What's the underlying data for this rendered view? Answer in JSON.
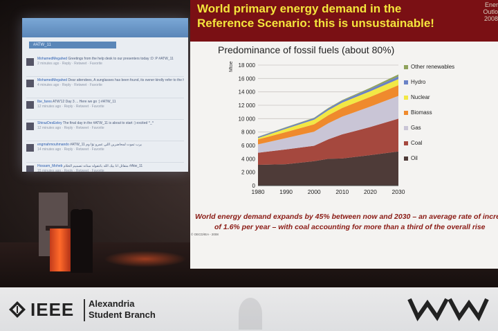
{
  "scene": {
    "description_colors": {
      "stage": "#2b211f",
      "slide_header": "#7a1014",
      "title_text": "#f4e53c",
      "footnote_text": "#8a1a14",
      "podium": "#ff6a2a"
    }
  },
  "twitter_screen": {
    "hashtag": "#ATW_11",
    "tweets": [
      {
        "user": "MohamedMegahed",
        "text": "Greetings from the help desk to our presenters today :D :P #ATW_11",
        "meta": "2 minutes ago · Reply · Retweet · Favorite"
      },
      {
        "user": "MohamedMegahed",
        "text": "Dear attendees, A sunglasses has been found, its owner kindly refer to the help desk #ATW_11",
        "meta": "4 minutes ago · Reply · Retweet · Favorite"
      },
      {
        "user": "Ibe_fares",
        "text": "ATW'12 Day 3 ... Here we go :) #ATW_11",
        "meta": "12 minutes ago · Reply · Retweet · Favorite"
      },
      {
        "user": "ShirazDesEeley",
        "text": "The final day in the #ATW_11 is about to start :) excited ^_^",
        "meta": "12 minutes ago · Reply · Retweet · Favorite"
      },
      {
        "user": "engmahmouhmando",
        "text": "#ATW_11 يرب تموت لمحاضرين اللي عمرو تؤا وم",
        "meta": "14 minutes ago · Reply · Retweet · Favorite"
      },
      {
        "user": "Hossam_Moheb",
        "text": "متفائل انا بيك الله بانتفوله ستانه تصميم الخلام #Atw_11",
        "meta": "15 minutes ago · Reply · Retweet · Favorite"
      }
    ]
  },
  "slide": {
    "title_line1": "World primary energy demand in the",
    "title_line2": "Reference Scenario: this is unsustainable!",
    "corner_line1": "Ener",
    "corner_line2": "Outlo",
    "corner_line3": "2008",
    "subtitle": "Predominance of fossil fuels (about 80%)",
    "footnote_line1": "World energy demand expands by 45% between now and 2030 – an average rate of increa",
    "footnote_line2": "of 1.6% per year – with coal accounting for more than a third of the overall rise",
    "copyright": "© OECD/IEA - 2008"
  },
  "chart_data": {
    "type": "area",
    "title": "Predominance of fossil fuels (about 80%)",
    "ylabel": "Mtoe",
    "xlabel": "",
    "x": [
      1980,
      1990,
      2000,
      2005,
      2010,
      2020,
      2030
    ],
    "ylim": [
      0,
      18000
    ],
    "xlim": [
      1980,
      2030
    ],
    "yticks": [
      "0",
      "2 000",
      "4 000",
      "6 000",
      "8 000",
      "10 000",
      "12 000",
      "14 000",
      "16 000",
      "18 000"
    ],
    "xticks": [
      "1980",
      "1990",
      "2000",
      "2010",
      "2020",
      "2030"
    ],
    "grid": true,
    "legend_position": "right",
    "series": [
      {
        "name": "Oil",
        "color": "#4e3b38",
        "values": [
          3100,
          3200,
          3650,
          4000,
          4050,
          4550,
          5100
        ]
      },
      {
        "name": "Coal",
        "color": "#a5483e",
        "values": [
          1800,
          2200,
          2300,
          2900,
          3600,
          4200,
          4900
        ]
      },
      {
        "name": "Gas",
        "color": "#c9c5d6",
        "values": [
          1250,
          1700,
          2100,
          2400,
          2650,
          3050,
          3400
        ]
      },
      {
        "name": "Biomass",
        "color": "#ef8a2d",
        "values": [
          750,
          900,
          1100,
          1200,
          1300,
          1450,
          1600
        ]
      },
      {
        "name": "Nuclear",
        "color": "#f2e845",
        "values": [
          200,
          500,
          700,
          750,
          800,
          850,
          900
        ]
      },
      {
        "name": "Hydro",
        "color": "#6a82c6",
        "values": [
          150,
          180,
          220,
          250,
          280,
          330,
          400
        ]
      },
      {
        "name": "Other renewables",
        "color": "#8fa25c",
        "values": [
          40,
          60,
          70,
          80,
          100,
          180,
          300
        ]
      }
    ]
  },
  "banner": {
    "ieee": "IEEE",
    "branch_line1": "Alexandria",
    "branch_line2": "Student Branch"
  }
}
